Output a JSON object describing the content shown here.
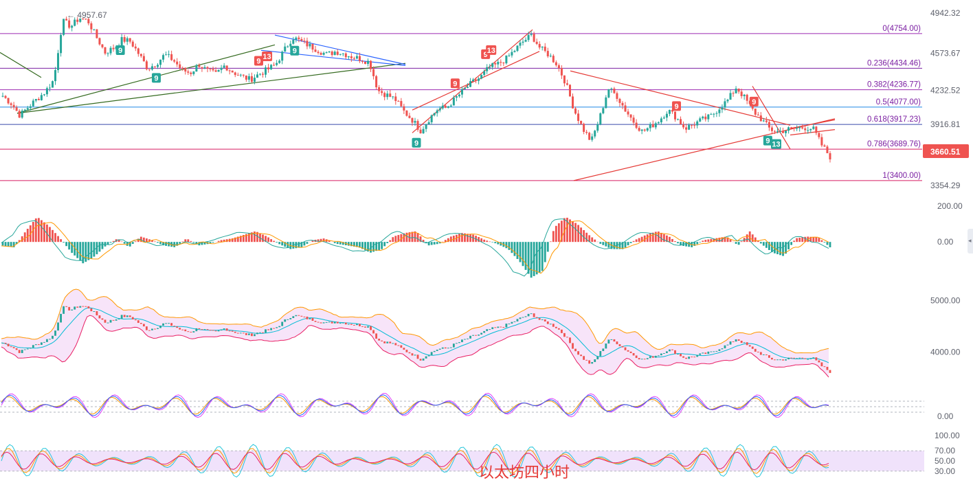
{
  "chart_data": {
    "type": "candlestick",
    "title": "",
    "symbol_watermark": "以太坊四小时",
    "price_axis_ticks": [
      "4942.32",
      "4573.67",
      "4232.52",
      "3916.81",
      "3354.29"
    ],
    "price_range": [
      3260,
      5000
    ],
    "current_price": "3660.51",
    "high_marker": "4957.67",
    "fibonacci_levels": [
      {
        "ratio": "0",
        "price": 4754.0,
        "label": "0(4754.00)",
        "color": "#9c27b0"
      },
      {
        "ratio": "0.236",
        "price": 4434.46,
        "label": "0.236(4434.46)",
        "color": "#7b1fa2"
      },
      {
        "ratio": "0.382",
        "price": 4236.77,
        "label": "0.382(4236.77)",
        "color": "#9c27b0"
      },
      {
        "ratio": "0.5",
        "price": 4077.0,
        "label": "0.5(4077.00)",
        "color": "#1e88e5"
      },
      {
        "ratio": "0.618",
        "price": 3917.23,
        "label": "0.618(3917.23)",
        "color": "#3949ab"
      },
      {
        "ratio": "0.786",
        "price": 3689.76,
        "label": "0.786(3689.76)",
        "color": "#d81b60"
      },
      {
        "ratio": "1",
        "price": 3400.0,
        "label": "1(3400.00)",
        "color": "#d81b60"
      }
    ],
    "close_path": [
      4180,
      4110,
      4000,
      4080,
      4150,
      4220,
      4330,
      4870,
      4820,
      4900,
      4870,
      4720,
      4580,
      4620,
      4700,
      4680,
      4560,
      4430,
      4480,
      4560,
      4510,
      4420,
      4390,
      4470,
      4410,
      4380,
      4460,
      4400,
      4360,
      4330,
      4380,
      4420,
      4470,
      4600,
      4720,
      4680,
      4640,
      4600,
      4560,
      4590,
      4570,
      4540,
      4520,
      4490,
      4230,
      4190,
      4150,
      4040,
      3960,
      3860,
      3970,
      4060,
      4070,
      4150,
      4230,
      4300,
      4350,
      4440,
      4470,
      4520,
      4600,
      4680,
      4740,
      4620,
      4560,
      4470,
      4300,
      4050,
      3880,
      3760,
      3980,
      4250,
      4180,
      4050,
      3940,
      3850,
      3900,
      3960,
      4050,
      3980,
      3880,
      3920,
      3960,
      3990,
      4070,
      4140,
      4260,
      4160,
      4040,
      3960,
      3870,
      3850,
      3870,
      3880,
      3890,
      3880,
      3730,
      3620
    ],
    "sequential_markers": [
      {
        "label": "9",
        "x_frac": 0.125,
        "side": "below",
        "color": "#26a69a"
      },
      {
        "label": "9",
        "x_frac": 0.16,
        "side": "below",
        "color": "#26a69a"
      },
      {
        "label": "9",
        "x_frac": 0.265,
        "side": "above",
        "color": "#ef5350"
      },
      {
        "label": "13",
        "x_frac": 0.273,
        "side": "above",
        "color": "#ef5350"
      },
      {
        "label": "9",
        "x_frac": 0.302,
        "side": "below",
        "color": "#26a69a"
      },
      {
        "label": "9",
        "x_frac": 0.428,
        "side": "below",
        "color": "#26a69a"
      },
      {
        "label": "9",
        "x_frac": 0.468,
        "side": "above",
        "color": "#ef5350"
      },
      {
        "label": "9",
        "x_frac": 0.498,
        "side": "above",
        "color": "#ef5350"
      },
      {
        "label": "13",
        "x_frac": 0.505,
        "side": "above",
        "color": "#ef5350"
      },
      {
        "label": "9",
        "x_frac": 0.695,
        "side": "above",
        "color": "#ef5350"
      },
      {
        "label": "9",
        "x_frac": 0.775,
        "side": "above",
        "color": "#ef5350"
      },
      {
        "label": "9",
        "x_frac": 0.79,
        "side": "below",
        "color": "#26a69a"
      },
      {
        "label": "13",
        "x_frac": 0.798,
        "side": "below",
        "color": "#26a69a"
      }
    ],
    "macd": {
      "axis_ticks": [
        "200.00",
        "0.00"
      ],
      "range": [
        -260,
        200
      ],
      "histogram_path": [
        -20,
        -30,
        60,
        140,
        90,
        20,
        -60,
        -120,
        -80,
        -20,
        20,
        -30,
        30,
        10,
        -20,
        -30,
        20,
        -20,
        -10,
        10,
        20,
        40,
        60,
        30,
        -10,
        -40,
        -30,
        10,
        20,
        -10,
        -20,
        -30,
        -60,
        -40,
        30,
        50,
        60,
        -20,
        -10,
        30,
        50,
        40,
        10,
        -10,
        -40,
        -110,
        -200,
        -160,
        80,
        140,
        100,
        40,
        -10,
        -40,
        -40,
        10,
        40,
        60,
        30,
        -20,
        -30,
        10,
        20,
        30,
        -20,
        60,
        -10,
        -60,
        -80,
        20,
        30,
        25,
        -30
      ]
    },
    "bollinger": {
      "axis_ticks": [
        "5000.00",
        "4000.00"
      ],
      "range": [
        3500,
        5100
      ]
    },
    "kdj": {
      "axis_ticks": [
        "0.00"
      ]
    },
    "rsi": {
      "axis_ticks": [
        "100.00",
        "70.00",
        "50.00",
        "30.00"
      ],
      "band_upper": 70,
      "band_lower": 30
    }
  },
  "colors": {
    "up": "#26a69a",
    "down": "#ef5350",
    "price_tag_bg": "#ef5350",
    "macd_line": "#26a69a",
    "signal_line": "#ff9800",
    "bb_upper": "#ff9800",
    "bb_lower": "#e91e63",
    "bb_basis": "#00bcd4",
    "bb_fill": "#f3d8f7",
    "rsi_band": "#f0e2fb",
    "trendline_red": "#e53935",
    "trendline_blue": "#2962ff",
    "trendline_green": "#33691e"
  },
  "icons": {
    "collapse": "chevron-left-icon"
  }
}
